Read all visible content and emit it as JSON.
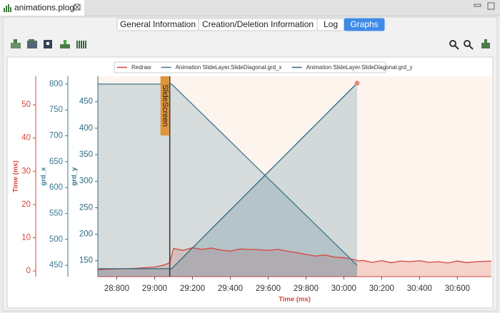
{
  "editor_tab": {
    "title": "animations.plog"
  },
  "tabs": [
    "General Information",
    "Creation/Deletion Information",
    "Log",
    "Graphs"
  ],
  "active_tab": 3,
  "chart_data": {
    "type": "line",
    "legend": "top",
    "xlabel": "Time (ms)",
    "xlim": [
      28700,
      30780
    ],
    "xticks": [
      {
        "value": 28800,
        "label": "28:800"
      },
      {
        "value": 29000,
        "label": "29:000"
      },
      {
        "value": 29200,
        "label": "29:200"
      },
      {
        "value": 29400,
        "label": "29:400"
      },
      {
        "value": 29600,
        "label": "29:600"
      },
      {
        "value": 29800,
        "label": "29:800"
      },
      {
        "value": 30000,
        "label": "30:000"
      },
      {
        "value": 30200,
        "label": "30:200"
      },
      {
        "value": 30400,
        "label": "30:400"
      },
      {
        "value": 30600,
        "label": "30:600"
      }
    ],
    "ylabel": "Time (ms)",
    "ylim": [
      -1.7,
      58.6
    ],
    "yticks": [
      0,
      10,
      20,
      30,
      40,
      50
    ],
    "y2label": "grd_x",
    "y2lim": [
      428,
      815
    ],
    "y2ticks": [
      450,
      500,
      550,
      600,
      650,
      700,
      750,
      800
    ],
    "y3label": "grd_y",
    "y3lim": [
      120,
      498
    ],
    "y3ticks": [
      150,
      200,
      250,
      300,
      350,
      400,
      450
    ],
    "annotations": [
      {
        "text": "SlideScreen",
        "x": 29080
      }
    ],
    "series": [
      {
        "name": "Redraw",
        "color": "#d6453d",
        "axis": "y",
        "x": [
          28700,
          28800,
          28900,
          29000,
          29050,
          29080,
          29100,
          29150,
          29200,
          29250,
          29300,
          29350,
          29400,
          29450,
          29500,
          29550,
          29600,
          29650,
          29700,
          29750,
          29800,
          29850,
          29900,
          29950,
          30000,
          30050,
          30080,
          30100,
          30150,
          30200,
          30250,
          30300,
          30350,
          30400,
          30450,
          30500,
          30550,
          30600,
          30650,
          30700,
          30780
        ],
        "values": [
          0.4,
          0.6,
          0.8,
          1.2,
          1.8,
          2.5,
          6.8,
          6.2,
          7.0,
          6.5,
          6.9,
          6.3,
          6.0,
          6.6,
          6.5,
          6.4,
          6.2,
          6.5,
          6.0,
          5.5,
          5.0,
          4.5,
          4.8,
          4.2,
          4.0,
          3.5,
          3.0,
          3.2,
          2.6,
          3.1,
          2.5,
          3.0,
          2.8,
          3.1,
          2.6,
          2.8,
          2.4,
          3.0,
          2.5,
          2.8,
          3.0
        ]
      },
      {
        "name": "Animation SlideLayer.SlideDiagonal.grd_x",
        "color": "#3b7891",
        "axis": "y2",
        "x": [
          28700,
          29090,
          29160,
          29230,
          29300,
          29370,
          29440,
          29510,
          29580,
          29650,
          29720,
          29790,
          29860,
          29930,
          30000,
          30070
        ],
        "values": [
          800,
          800,
          775,
          750,
          725,
          700,
          675,
          650,
          625,
          600,
          575,
          550,
          525,
          500,
          475,
          450
        ]
      },
      {
        "name": "Animation SlideLayer.SlideDiagonal.grd_y",
        "color": "#2e6a80",
        "axis": "y3",
        "x": [
          28700,
          29090,
          29160,
          29230,
          29300,
          29370,
          29440,
          29510,
          29580,
          29650,
          29720,
          29790,
          29860,
          29930,
          30000,
          30070
        ],
        "values": [
          135,
          135,
          160,
          185,
          210,
          235,
          260,
          285,
          310,
          335,
          360,
          385,
          410,
          435,
          460,
          485
        ]
      }
    ]
  }
}
